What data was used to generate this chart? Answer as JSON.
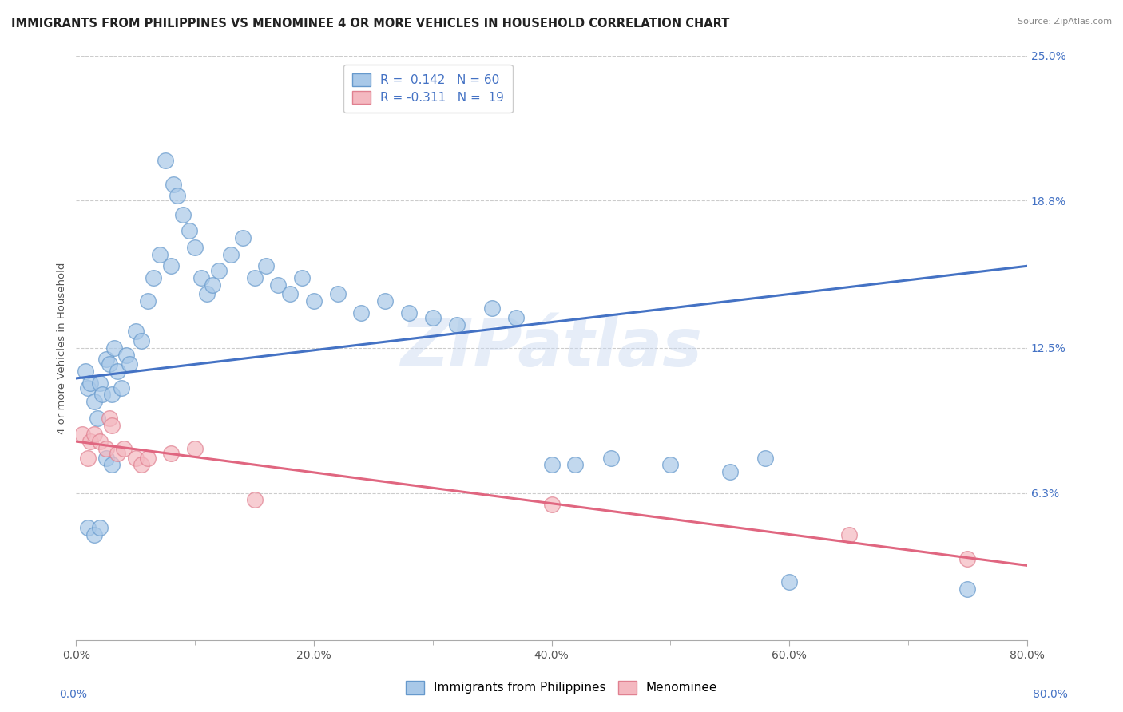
{
  "title": "IMMIGRANTS FROM PHILIPPINES VS MENOMINEE 4 OR MORE VEHICLES IN HOUSEHOLD CORRELATION CHART",
  "source": "Source: ZipAtlas.com",
  "xlabel_values": [
    0.0,
    20.0,
    40.0,
    60.0,
    80.0
  ],
  "ylabel_right": [
    "25.0%",
    "18.8%",
    "12.5%",
    "6.3%"
  ],
  "ylabel_right_values": [
    25.0,
    18.8,
    12.5,
    6.3
  ],
  "ylabel_label": "4 or more Vehicles in Household",
  "legend_label1": "Immigrants from Philippines",
  "legend_label2": "Menominee",
  "r1": 0.142,
  "n1": 60,
  "r2": -0.311,
  "n2": 19,
  "blue_color": "#a8c8e8",
  "pink_color": "#f4b8c0",
  "blue_edge_color": "#6699cc",
  "pink_edge_color": "#e08090",
  "blue_line_color": "#4472c4",
  "pink_line_color": "#e06680",
  "blue_scatter": [
    [
      0.8,
      11.5
    ],
    [
      1.0,
      10.8
    ],
    [
      1.2,
      11.0
    ],
    [
      1.5,
      10.2
    ],
    [
      1.8,
      9.5
    ],
    [
      2.0,
      11.0
    ],
    [
      2.2,
      10.5
    ],
    [
      2.5,
      12.0
    ],
    [
      2.8,
      11.8
    ],
    [
      3.0,
      10.5
    ],
    [
      3.2,
      12.5
    ],
    [
      3.5,
      11.5
    ],
    [
      3.8,
      10.8
    ],
    [
      4.2,
      12.2
    ],
    [
      4.5,
      11.8
    ],
    [
      5.0,
      13.2
    ],
    [
      5.5,
      12.8
    ],
    [
      6.0,
      14.5
    ],
    [
      6.5,
      15.5
    ],
    [
      7.0,
      16.5
    ],
    [
      7.5,
      20.5
    ],
    [
      8.0,
      16.0
    ],
    [
      8.2,
      19.5
    ],
    [
      8.5,
      19.0
    ],
    [
      9.0,
      18.2
    ],
    [
      9.5,
      17.5
    ],
    [
      10.0,
      16.8
    ],
    [
      10.5,
      15.5
    ],
    [
      11.0,
      14.8
    ],
    [
      11.5,
      15.2
    ],
    [
      12.0,
      15.8
    ],
    [
      13.0,
      16.5
    ],
    [
      14.0,
      17.2
    ],
    [
      15.0,
      15.5
    ],
    [
      16.0,
      16.0
    ],
    [
      17.0,
      15.2
    ],
    [
      18.0,
      14.8
    ],
    [
      19.0,
      15.5
    ],
    [
      20.0,
      14.5
    ],
    [
      22.0,
      14.8
    ],
    [
      24.0,
      14.0
    ],
    [
      26.0,
      14.5
    ],
    [
      28.0,
      14.0
    ],
    [
      30.0,
      13.8
    ],
    [
      32.0,
      13.5
    ],
    [
      35.0,
      14.2
    ],
    [
      37.0,
      13.8
    ],
    [
      42.0,
      7.5
    ],
    [
      45.0,
      7.8
    ],
    [
      50.0,
      7.5
    ],
    [
      55.0,
      7.2
    ],
    [
      58.0,
      7.8
    ],
    [
      1.0,
      4.8
    ],
    [
      1.5,
      4.5
    ],
    [
      2.0,
      4.8
    ],
    [
      2.5,
      7.8
    ],
    [
      3.0,
      7.5
    ],
    [
      40.0,
      7.5
    ],
    [
      60.0,
      2.5
    ],
    [
      75.0,
      2.2
    ]
  ],
  "pink_scatter": [
    [
      0.5,
      8.8
    ],
    [
      1.0,
      7.8
    ],
    [
      1.2,
      8.5
    ],
    [
      1.5,
      8.8
    ],
    [
      2.0,
      8.5
    ],
    [
      2.5,
      8.2
    ],
    [
      2.8,
      9.5
    ],
    [
      3.0,
      9.2
    ],
    [
      3.5,
      8.0
    ],
    [
      4.0,
      8.2
    ],
    [
      5.0,
      7.8
    ],
    [
      5.5,
      7.5
    ],
    [
      6.0,
      7.8
    ],
    [
      8.0,
      8.0
    ],
    [
      10.0,
      8.2
    ],
    [
      15.0,
      6.0
    ],
    [
      40.0,
      5.8
    ],
    [
      65.0,
      4.5
    ],
    [
      75.0,
      3.5
    ]
  ],
  "blue_line_x": [
    0.0,
    80.0
  ],
  "blue_line_y": [
    11.2,
    16.0
  ],
  "pink_line_x": [
    0.0,
    80.0
  ],
  "pink_line_y": [
    8.5,
    3.2
  ],
  "xmin": 0.0,
  "xmax": 80.0,
  "ymin": 0.0,
  "ymax": 25.0,
  "grid_color": "#cccccc",
  "background_color": "#ffffff",
  "title_fontsize": 10.5,
  "axis_label_fontsize": 9.5,
  "tick_label_fontsize": 10,
  "legend_fontsize": 11
}
